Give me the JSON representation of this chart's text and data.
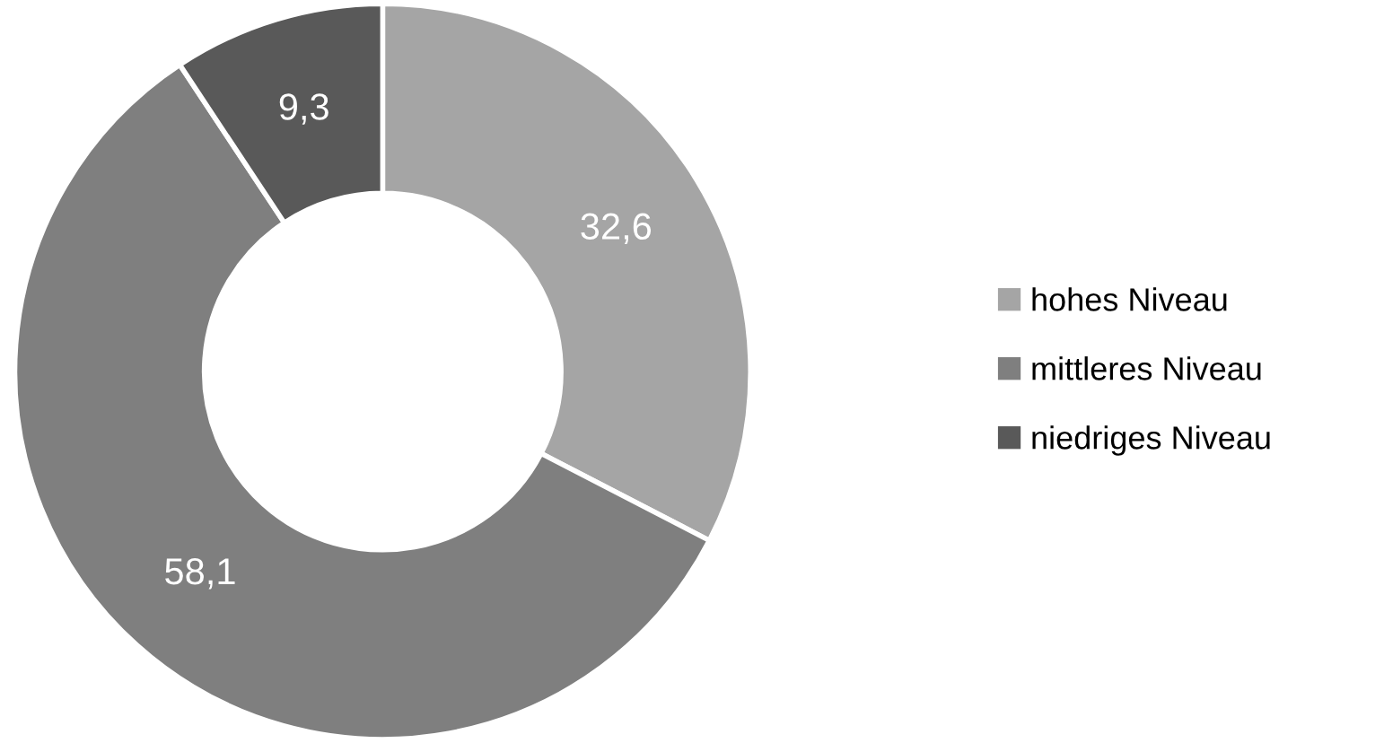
{
  "chart_data": {
    "type": "donut",
    "categories": [
      "hohes Niveau",
      "mittleres Niveau",
      "niedriges Niveau"
    ],
    "values": [
      32.6,
      58.1,
      9.3
    ],
    "colors": [
      "#a5a5a5",
      "#7f7f7f",
      "#595959"
    ],
    "value_labels": [
      "32,6",
      "58,1",
      "9,3"
    ],
    "legend": "right"
  }
}
